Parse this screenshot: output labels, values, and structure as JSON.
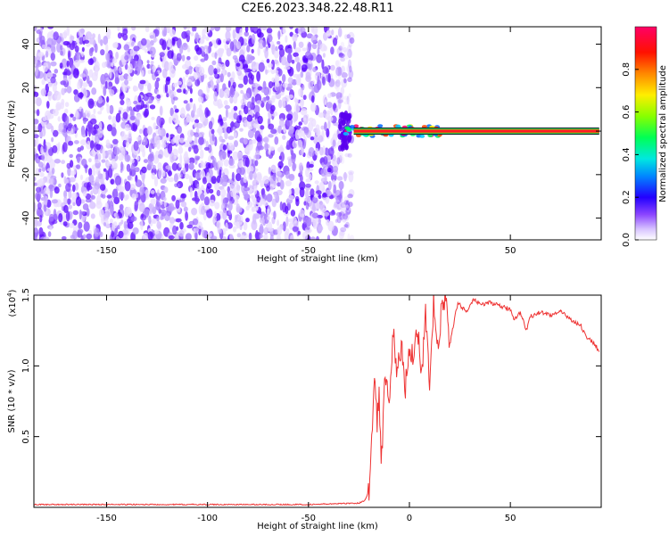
{
  "title": "C2E6.2023.348.22.48.R11",
  "chart_data": [
    {
      "type": "heatmap",
      "title": "C2E6.2023.348.22.48.R11",
      "xlabel": "Height of straight line (km)",
      "ylabel": "Frequency (Hz)",
      "xlim": [
        -186,
        95
      ],
      "ylim": [
        -50,
        48
      ],
      "x_ticks": [
        -150,
        -100,
        -50,
        0,
        50
      ],
      "y_ticks": [
        -40,
        -20,
        0,
        20,
        40
      ],
      "colorbar": {
        "label": "Normalized spectral amplitude",
        "range": [
          0,
          1
        ],
        "ticks": [
          "0.0",
          "0.2",
          "0.4",
          "0.6",
          "0.8"
        ],
        "tick_values": [
          0.0,
          0.2,
          0.4,
          0.6,
          0.8
        ],
        "colors": [
          "#ffffff",
          "#b088ff",
          "#6a00ff",
          "#0000ff",
          "#00c8ff",
          "#00ff66",
          "#88ff00",
          "#ffff00",
          "#ff8800",
          "#ff0000",
          "#ff0066"
        ]
      },
      "noise_region_x": [
        -186,
        -32
      ],
      "signal_line": {
        "frequency_hz": 0,
        "x_start": -32,
        "x_end": 94,
        "peak_amplitude": 1.0
      },
      "grid": false
    },
    {
      "type": "line",
      "xlabel": "Height of straight line (km)",
      "ylabel": "SNR (10 * v/v)",
      "y_multiplier": "(x10^4)",
      "xlim": [
        -186,
        95
      ],
      "ylim": [
        0,
        1.5
      ],
      "x_ticks": [
        -150,
        -100,
        -50,
        0,
        50
      ],
      "y_ticks": [
        0.5,
        1.0,
        1.5
      ],
      "y_tick_labels": [
        "0.5",
        "1.0",
        "1.5"
      ],
      "series": [
        {
          "color": "#ee3333",
          "x": [
            -186,
            -150,
            -100,
            -50,
            -25,
            -22,
            -20,
            -19,
            -18,
            -17,
            -16,
            -15,
            -14,
            -13,
            -12,
            -10,
            -8,
            -6,
            -4,
            -2,
            0,
            2,
            4,
            6,
            8,
            10,
            12,
            14,
            16,
            18,
            20,
            24,
            28,
            32,
            36,
            40,
            45,
            50,
            52,
            55,
            58,
            60,
            65,
            70,
            75,
            80,
            85,
            88,
            92,
            94
          ],
          "y": [
            0.02,
            0.02,
            0.02,
            0.02,
            0.03,
            0.05,
            0.12,
            0.35,
            0.7,
            0.95,
            0.6,
            0.8,
            0.3,
            0.6,
            0.95,
            0.75,
            1.23,
            0.95,
            1.15,
            0.85,
            1.15,
            1.05,
            1.3,
            0.9,
            1.35,
            0.85,
            1.45,
            1.1,
            1.4,
            1.5,
            1.15,
            1.45,
            1.38,
            1.47,
            1.43,
            1.45,
            1.42,
            1.4,
            1.33,
            1.38,
            1.25,
            1.35,
            1.38,
            1.36,
            1.38,
            1.33,
            1.28,
            1.2,
            1.15,
            1.1
          ]
        }
      ],
      "grid": false
    }
  ]
}
